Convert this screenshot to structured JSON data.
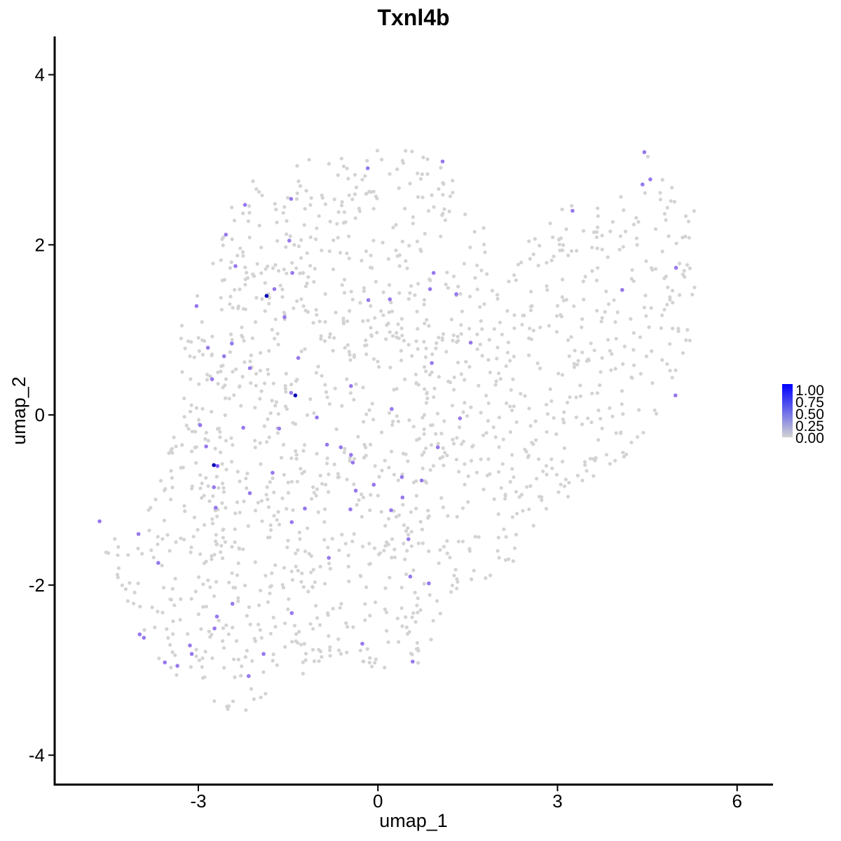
{
  "chart_data": {
    "type": "scatter",
    "title": "Txnl4b",
    "xlabel": "umap_1",
    "ylabel": "umap_2",
    "xlim": [
      -5.4,
      6.6
    ],
    "ylim": [
      -4.35,
      4.45
    ],
    "x_ticks": [
      -3,
      0,
      3,
      6
    ],
    "y_ticks": [
      -4,
      -2,
      0,
      2,
      4
    ],
    "x_tick_labels": [
      "-3",
      "0",
      "3",
      "6"
    ],
    "y_tick_labels": [
      "-4",
      "-2",
      "0",
      "2",
      "4"
    ],
    "grid": false,
    "legend": {
      "placement": "right",
      "type": "colorbar",
      "low_color": "#d3d3d3",
      "high_color": "#0000ff",
      "range": [
        0,
        1
      ],
      "labels": [
        "1.00",
        "0.75",
        "0.50",
        "0.25",
        "0.00"
      ]
    },
    "background_color": "#d3d3d3",
    "background_point_count": 1500,
    "expressing_points": [
      {
        "x": 4.45,
        "y": 3.09,
        "v": 0.6
      },
      {
        "x": 1.08,
        "y": 2.98,
        "v": 0.6
      },
      {
        "x": -0.17,
        "y": 2.9,
        "v": 0.6
      },
      {
        "x": 4.55,
        "y": 2.77,
        "v": 0.6
      },
      {
        "x": 4.42,
        "y": 2.71,
        "v": 0.6
      },
      {
        "x": -1.45,
        "y": 2.54,
        "v": 0.6
      },
      {
        "x": -2.22,
        "y": 2.47,
        "v": 0.6
      },
      {
        "x": 3.25,
        "y": 2.4,
        "v": 0.6
      },
      {
        "x": -2.54,
        "y": 2.12,
        "v": 0.6
      },
      {
        "x": -1.48,
        "y": 2.05,
        "v": 0.6
      },
      {
        "x": -2.38,
        "y": 1.75,
        "v": 0.6
      },
      {
        "x": 4.98,
        "y": 1.73,
        "v": 0.6
      },
      {
        "x": 0.93,
        "y": 1.67,
        "v": 0.6
      },
      {
        "x": -1.43,
        "y": 1.67,
        "v": 0.6
      },
      {
        "x": -1.73,
        "y": 1.48,
        "v": 0.6
      },
      {
        "x": 0.87,
        "y": 1.48,
        "v": 0.6
      },
      {
        "x": 4.08,
        "y": 1.47,
        "v": 0.6
      },
      {
        "x": 1.31,
        "y": 1.42,
        "v": 0.6
      },
      {
        "x": -1.86,
        "y": 1.4,
        "v": 1.0
      },
      {
        "x": -0.16,
        "y": 1.35,
        "v": 0.6
      },
      {
        "x": 0.2,
        "y": 1.36,
        "v": 0.6
      },
      {
        "x": -3.03,
        "y": 1.28,
        "v": 0.6
      },
      {
        "x": -1.56,
        "y": 1.15,
        "v": 0.6
      },
      {
        "x": 1.55,
        "y": 0.85,
        "v": 0.6
      },
      {
        "x": -2.44,
        "y": 0.84,
        "v": 0.6
      },
      {
        "x": -2.84,
        "y": 0.79,
        "v": 0.6
      },
      {
        "x": -2.57,
        "y": 0.69,
        "v": 0.6
      },
      {
        "x": -1.33,
        "y": 0.67,
        "v": 0.6
      },
      {
        "x": 0.9,
        "y": 0.61,
        "v": 0.6
      },
      {
        "x": -2.14,
        "y": 0.55,
        "v": 0.6
      },
      {
        "x": -2.77,
        "y": 0.42,
        "v": 0.6
      },
      {
        "x": -0.45,
        "y": 0.34,
        "v": 0.6
      },
      {
        "x": -1.45,
        "y": 0.26,
        "v": 0.6
      },
      {
        "x": -1.38,
        "y": 0.23,
        "v": 0.95
      },
      {
        "x": 4.97,
        "y": 0.23,
        "v": 0.6
      },
      {
        "x": 0.23,
        "y": 0.07,
        "v": 0.6
      },
      {
        "x": -1.02,
        "y": -0.03,
        "v": 0.6
      },
      {
        "x": 1.37,
        "y": -0.04,
        "v": 0.6
      },
      {
        "x": -2.97,
        "y": -0.12,
        "v": 0.6
      },
      {
        "x": -2.25,
        "y": -0.15,
        "v": 0.6
      },
      {
        "x": -1.65,
        "y": -0.16,
        "v": 0.6
      },
      {
        "x": -0.85,
        "y": -0.35,
        "v": 0.6
      },
      {
        "x": -2.87,
        "y": -0.37,
        "v": 0.6
      },
      {
        "x": -0.62,
        "y": -0.38,
        "v": 0.6
      },
      {
        "x": 1.0,
        "y": -0.38,
        "v": 0.6
      },
      {
        "x": -0.45,
        "y": -0.47,
        "v": 0.6
      },
      {
        "x": -0.42,
        "y": -0.56,
        "v": 0.6
      },
      {
        "x": -2.74,
        "y": -0.59,
        "v": 0.95
      },
      {
        "x": -2.68,
        "y": -0.6,
        "v": 0.8
      },
      {
        "x": -1.76,
        "y": -0.68,
        "v": 0.6
      },
      {
        "x": 0.4,
        "y": -0.73,
        "v": 0.6
      },
      {
        "x": 0.73,
        "y": -0.77,
        "v": 0.6
      },
      {
        "x": -0.07,
        "y": -0.82,
        "v": 0.6
      },
      {
        "x": -2.74,
        "y": -0.85,
        "v": 0.6
      },
      {
        "x": -0.37,
        "y": -0.89,
        "v": 0.6
      },
      {
        "x": -2.14,
        "y": -0.92,
        "v": 0.6
      },
      {
        "x": 0.41,
        "y": -0.97,
        "v": 0.6
      },
      {
        "x": -2.71,
        "y": -1.09,
        "v": 0.6
      },
      {
        "x": -1.22,
        "y": -1.1,
        "v": 0.6
      },
      {
        "x": -0.46,
        "y": -1.11,
        "v": 0.6
      },
      {
        "x": 0.22,
        "y": -1.12,
        "v": 0.6
      },
      {
        "x": -4.65,
        "y": -1.25,
        "v": 0.6
      },
      {
        "x": -1.44,
        "y": -1.26,
        "v": 0.6
      },
      {
        "x": -4.0,
        "y": -1.4,
        "v": 0.6
      },
      {
        "x": 0.51,
        "y": -1.46,
        "v": 0.6
      },
      {
        "x": -0.82,
        "y": -1.68,
        "v": 0.6
      },
      {
        "x": -3.67,
        "y": -1.74,
        "v": 0.6
      },
      {
        "x": 0.54,
        "y": -1.9,
        "v": 0.6
      },
      {
        "x": 0.85,
        "y": -1.98,
        "v": 0.6
      },
      {
        "x": -2.43,
        "y": -2.22,
        "v": 0.6
      },
      {
        "x": -1.44,
        "y": -2.33,
        "v": 0.6
      },
      {
        "x": -2.69,
        "y": -2.37,
        "v": 0.6
      },
      {
        "x": -2.73,
        "y": -2.51,
        "v": 0.6
      },
      {
        "x": -3.98,
        "y": -2.58,
        "v": 0.6
      },
      {
        "x": -3.91,
        "y": -2.62,
        "v": 0.6
      },
      {
        "x": -0.26,
        "y": -2.69,
        "v": 0.6
      },
      {
        "x": -3.14,
        "y": -2.71,
        "v": 0.6
      },
      {
        "x": -1.91,
        "y": -2.81,
        "v": 0.6
      },
      {
        "x": -3.11,
        "y": -2.81,
        "v": 0.6
      },
      {
        "x": -3.56,
        "y": -2.91,
        "v": 0.6
      },
      {
        "x": 0.58,
        "y": -2.9,
        "v": 0.6
      },
      {
        "x": -3.35,
        "y": -2.95,
        "v": 0.6
      },
      {
        "x": -2.16,
        "y": -3.07,
        "v": 0.6
      }
    ]
  }
}
